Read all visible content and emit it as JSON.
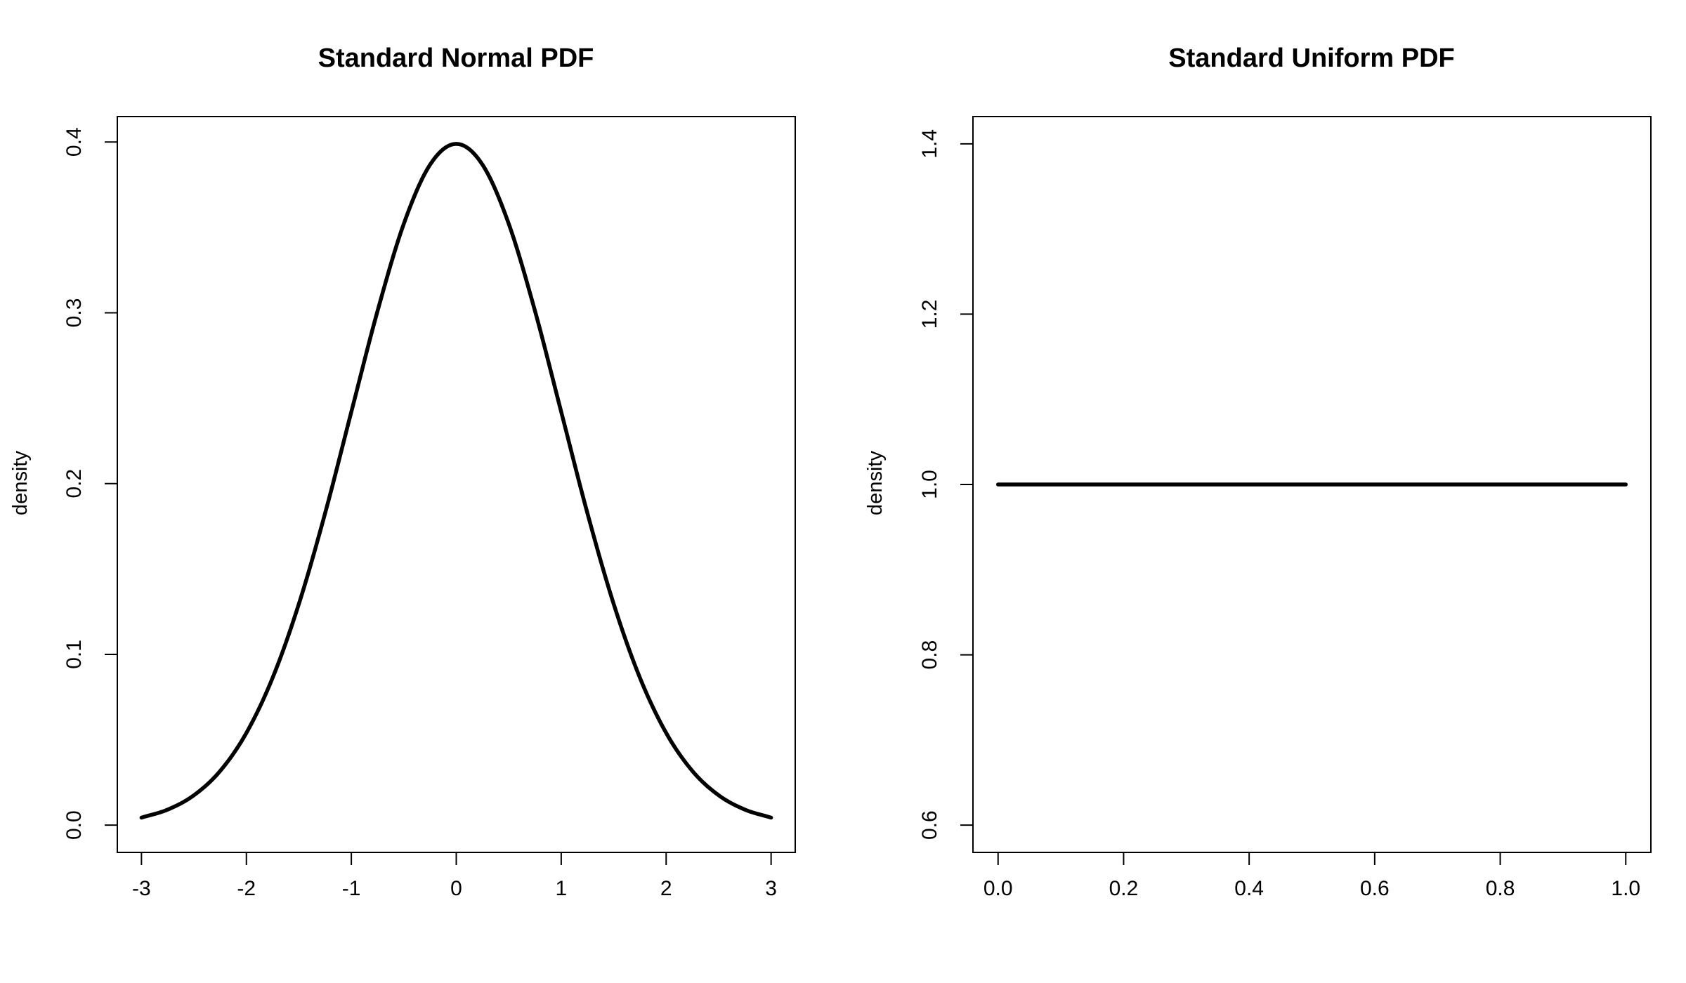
{
  "chart_data": [
    {
      "type": "line",
      "title": "Standard Normal PDF",
      "xlabel": "",
      "ylabel": "density",
      "xlim": [
        -3.23,
        3.23
      ],
      "ylim": [
        -0.01596,
        0.41489
      ],
      "x_ticks": [
        -3,
        -2,
        -1,
        0,
        1,
        2,
        3
      ],
      "x_tick_labels": [
        "-3",
        "-2",
        "-1",
        "0",
        "1",
        "2",
        "3"
      ],
      "y_ticks": [
        0.0,
        0.1,
        0.2,
        0.3,
        0.4
      ],
      "y_tick_labels": [
        "0.0",
        "0.1",
        "0.2",
        "0.3",
        "0.4"
      ],
      "grid": false,
      "series": [
        {
          "x": [
            -3.0,
            -2.75,
            -2.5,
            -2.25,
            -2.0,
            -1.75,
            -1.5,
            -1.25,
            -1.0,
            -0.75,
            -0.5,
            -0.25,
            0.0,
            0.25,
            0.5,
            0.75,
            1.0,
            1.25,
            1.5,
            1.75,
            2.0,
            2.25,
            2.5,
            2.75,
            3.0
          ],
          "y": [
            0.0044,
            0.0091,
            0.0175,
            0.0317,
            0.054,
            0.0863,
            0.1295,
            0.1826,
            0.242,
            0.3011,
            0.3521,
            0.3867,
            0.3989,
            0.3867,
            0.3521,
            0.3011,
            0.242,
            0.1826,
            0.1295,
            0.0863,
            0.054,
            0.0317,
            0.0175,
            0.0091,
            0.0044
          ]
        }
      ]
    },
    {
      "type": "line",
      "title": "Standard Uniform PDF",
      "xlabel": "",
      "ylabel": "density",
      "xlim": [
        -0.04,
        1.04
      ],
      "ylim": [
        0.568,
        1.432
      ],
      "x_ticks": [
        0.0,
        0.2,
        0.4,
        0.6,
        0.8,
        1.0
      ],
      "x_tick_labels": [
        "0.0",
        "0.2",
        "0.4",
        "0.6",
        "0.8",
        "1.0"
      ],
      "y_ticks": [
        0.6,
        0.8,
        1.0,
        1.2,
        1.4
      ],
      "y_tick_labels": [
        "0.6",
        "0.8",
        "1.0",
        "1.2",
        "1.4"
      ],
      "grid": false,
      "series": [
        {
          "x": [
            0.0,
            1.0
          ],
          "y": [
            1.0,
            1.0
          ]
        }
      ]
    }
  ]
}
